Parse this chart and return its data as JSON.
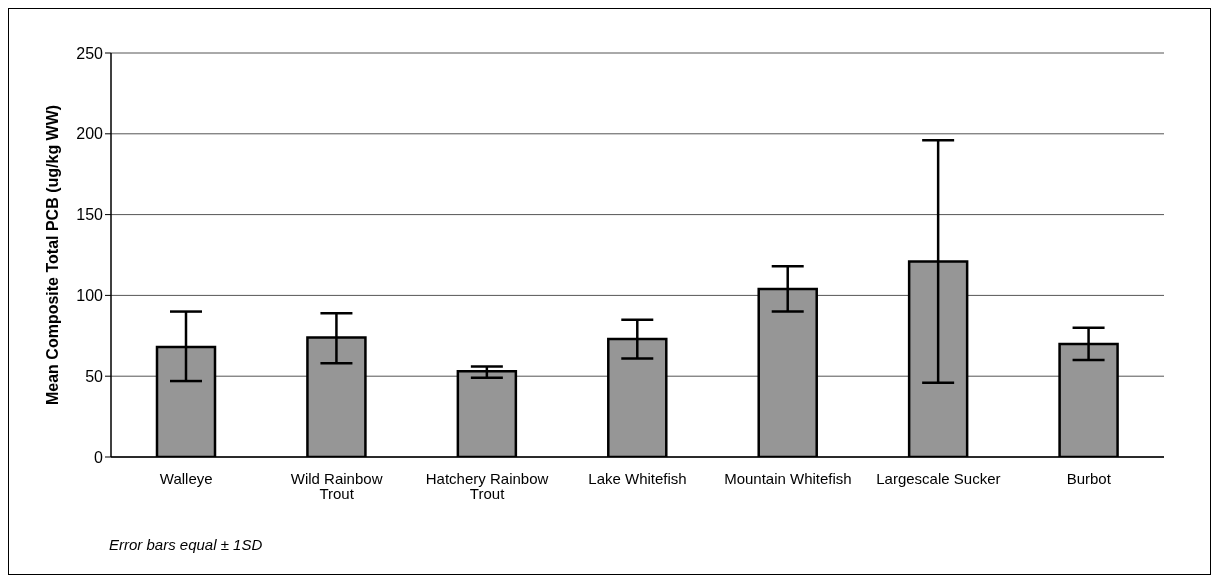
{
  "chart_data": {
    "type": "bar",
    "ylabel": "Mean Composite Total PCB (ug/kg WW)",
    "categories": [
      "Walleye",
      "Wild Rainbow Trout",
      "Hatchery Rainbow Trout",
      "Lake Whitefish",
      "Mountain Whitefish",
      "Largescale Sucker",
      "Burbot"
    ],
    "values": [
      68,
      74,
      53,
      73,
      104,
      121,
      70
    ],
    "errors": [
      [
        47,
        90
      ],
      [
        58,
        89
      ],
      [
        49,
        56
      ],
      [
        61,
        85
      ],
      [
        90,
        118
      ],
      [
        46,
        196
      ],
      [
        60,
        80
      ]
    ],
    "color": "#969696",
    "ylim": [
      0,
      250
    ],
    "yticks": [
      0,
      50,
      100,
      150,
      200,
      250
    ],
    "grid": "y",
    "legend": false,
    "annotations": [
      "Error bars equal ± 1SD"
    ]
  }
}
